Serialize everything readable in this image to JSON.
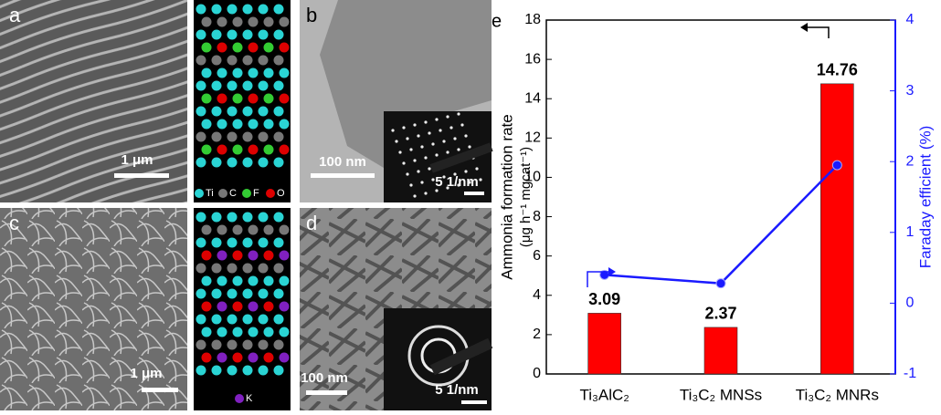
{
  "panels": [
    {
      "label": "a",
      "scale": "1 μm"
    },
    {
      "label": "b",
      "scale": "100 nm",
      "inset_scale": "5 1/nm"
    },
    {
      "label": "c",
      "scale": "1 μm"
    },
    {
      "label": "d",
      "scale": "100 nm",
      "inset_scale": "5 1/nm"
    }
  ],
  "structure_legends": [
    [
      "Ti",
      "C",
      "F",
      "O"
    ],
    [
      "K"
    ]
  ],
  "chart_data": {
    "type": "bar",
    "panel_label": "e",
    "categories": [
      "Ti₃AlC₂",
      "Ti₃C₂ MNSs",
      "Ti₃C₂ MNRs"
    ],
    "ylabel": [
      "Ammonia formation rate",
      "(μg h⁻¹ mgcat⁻¹)"
    ],
    "y2label": "Faraday efficient  (%)",
    "series": [
      {
        "type": "bar",
        "color": "#ff0000",
        "values": [
          3.09,
          2.37,
          14.76
        ]
      },
      {
        "type": "line",
        "axis": "y2",
        "color": "#1a1aff",
        "values": [
          0.4,
          0.28,
          1.95
        ]
      }
    ],
    "ylim": [
      0,
      18
    ],
    "yticks": [
      0,
      2,
      4,
      6,
      8,
      10,
      12,
      14,
      16,
      18
    ],
    "y2lim": [
      -1,
      4
    ],
    "y2ticks": [
      -1,
      0,
      1,
      2,
      3,
      4
    ]
  }
}
